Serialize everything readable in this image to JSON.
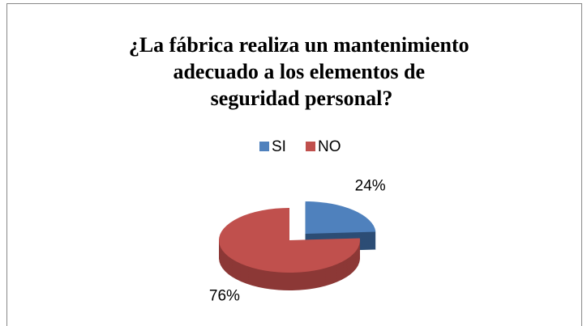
{
  "chart_data": {
    "type": "pie",
    "title": "¿La fábrica realiza un mantenimiento adecuado a los elementos de seguridad personal?",
    "categories": [
      "SI",
      "NO"
    ],
    "values": [
      24,
      76
    ],
    "value_labels": [
      "24%",
      "76%"
    ],
    "colors": [
      "#4f81bd",
      "#c0504d"
    ],
    "legend": "top"
  }
}
